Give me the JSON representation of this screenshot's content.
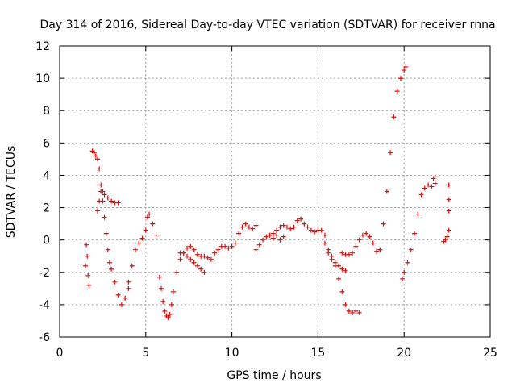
{
  "chart_data": {
    "type": "scatter",
    "title": "Day 314 of 2016, Sidereal Day-to-day VTEC variation (SDTVAR) for receiver rnna",
    "xlabel": "GPS time / hours",
    "ylabel": "SDTVAR / TECUs",
    "xlim": [
      0,
      25
    ],
    "ylim": [
      -6,
      12
    ],
    "xticks": [
      0,
      5,
      10,
      15,
      20,
      25
    ],
    "yticks": [
      -6,
      -4,
      -2,
      0,
      2,
      4,
      6,
      8,
      10,
      12
    ],
    "xtick_labels": [
      "0",
      "5",
      "10",
      "15",
      "20",
      "25"
    ],
    "ytick_labels": [
      "-6",
      "-4",
      "-2",
      "0",
      "2",
      "4",
      "6",
      "8",
      "10",
      "12"
    ],
    "grid": true,
    "marker": "plus",
    "color": "#ff0000",
    "series": [
      {
        "name": "seg1",
        "x": [
          1.5,
          1.55,
          1.6,
          1.65,
          1.7
        ],
        "y": [
          -1.6,
          -0.3,
          -1.0,
          -2.2,
          -2.8
        ]
      },
      {
        "name": "seg2",
        "x": [
          1.9,
          2.0,
          2.1,
          2.2,
          2.3,
          2.4,
          2.5,
          2.6,
          2.7,
          2.8,
          2.9,
          3.0,
          3.2,
          3.4,
          3.6,
          3.8,
          4.0
        ],
        "y": [
          5.5,
          5.4,
          5.2,
          5.0,
          4.4,
          3.4,
          2.4,
          1.4,
          0.4,
          -0.6,
          -1.4,
          -1.8,
          -2.6,
          -3.4,
          -4.0,
          -3.6,
          -3.0
        ]
      },
      {
        "name": "seg3",
        "x": [
          2.2,
          2.3,
          2.4,
          2.5,
          2.6,
          2.8,
          3.0,
          3.2,
          3.4
        ],
        "y": [
          1.8,
          2.4,
          3.0,
          3.0,
          2.8,
          2.6,
          2.4,
          2.3,
          2.3
        ]
      },
      {
        "name": "seg4",
        "x": [
          4.0,
          4.2,
          4.4,
          4.6,
          4.8,
          5.0,
          5.1,
          5.2,
          5.4,
          5.6
        ],
        "y": [
          -2.6,
          -1.6,
          -0.6,
          -0.2,
          0.1,
          0.6,
          1.4,
          1.6,
          1.0,
          0.3
        ]
      },
      {
        "name": "seg5",
        "x": [
          5.8,
          5.9,
          6.0,
          6.1,
          6.2,
          6.3,
          6.4,
          6.5,
          6.6,
          6.8,
          7.0,
          7.2,
          7.4,
          7.6,
          7.8,
          8.0,
          8.2,
          8.4,
          8.6,
          8.8,
          9.0,
          9.2,
          9.4,
          9.6,
          9.8,
          10.0,
          10.2,
          10.4,
          10.6,
          10.8,
          11.0,
          11.2,
          11.4
        ],
        "y": [
          -2.3,
          -3.0,
          -3.8,
          -4.4,
          -4.7,
          -4.8,
          -4.6,
          -4.0,
          -3.2,
          -2.0,
          -1.2,
          -0.8,
          -0.5,
          -0.4,
          -0.6,
          -0.9,
          -1.0,
          -1.0,
          -1.1,
          -1.2,
          -0.8,
          -0.6,
          -0.4,
          -0.4,
          -0.5,
          -0.4,
          -0.2,
          0.4,
          0.8,
          1.0,
          0.8,
          0.7,
          0.9
        ]
      },
      {
        "name": "seg6",
        "x": [
          7.0,
          7.2,
          7.4,
          7.6,
          7.8,
          8.0,
          8.2,
          8.4
        ],
        "y": [
          -0.8,
          -0.8,
          -1.0,
          -1.2,
          -1.4,
          -1.6,
          -1.8,
          -2.0
        ]
      },
      {
        "name": "seg7",
        "x": [
          11.4,
          11.6,
          11.8,
          12.0,
          12.2,
          12.4,
          12.6,
          12.8,
          13.0,
          13.2,
          13.4,
          13.6,
          13.8,
          14.0,
          14.2,
          14.4,
          14.6,
          14.8,
          15.0,
          15.2,
          15.4
        ],
        "y": [
          -0.6,
          -0.3,
          0.0,
          0.2,
          0.3,
          0.4,
          0.6,
          0.8,
          0.9,
          0.8,
          0.7,
          0.8,
          1.2,
          1.3,
          1.0,
          0.8,
          0.6,
          0.5,
          0.6,
          0.6,
          0.3
        ]
      },
      {
        "name": "seg8",
        "x": [
          12.2,
          12.4,
          12.6,
          12.8,
          13.0
        ],
        "y": [
          0.3,
          0.1,
          0.3,
          0.0,
          0.2
        ]
      },
      {
        "name": "seg9",
        "x": [
          15.4,
          15.6,
          15.8,
          16.0,
          16.2,
          16.4,
          16.6,
          16.8,
          17.0,
          17.2,
          17.4
        ],
        "y": [
          -0.2,
          -0.6,
          -1.0,
          -1.6,
          -2.4,
          -3.2,
          -4.0,
          -4.4,
          -4.5,
          -4.4,
          -4.5
        ]
      },
      {
        "name": "seg10",
        "x": [
          16.4,
          16.6,
          16.8,
          17.0,
          17.2,
          17.4,
          17.6,
          17.8,
          18.0,
          18.2,
          18.4,
          18.6
        ],
        "y": [
          -0.8,
          -0.9,
          -0.9,
          -0.8,
          -0.4,
          0.0,
          0.3,
          0.4,
          0.2,
          -0.2,
          -0.7,
          -0.6
        ]
      },
      {
        "name": "seg11",
        "x": [
          15.6,
          15.8,
          16.0,
          16.2,
          16.4,
          16.6
        ],
        "y": [
          -0.8,
          -1.2,
          -1.4,
          -1.6,
          -1.8,
          -1.9
        ]
      },
      {
        "name": "seg12",
        "x": [
          18.6,
          18.8,
          19.0,
          19.2,
          19.4,
          19.6,
          19.8,
          20.0,
          20.1
        ],
        "y": [
          -0.6,
          1.0,
          3.0,
          5.4,
          7.6,
          9.2,
          10.0,
          10.5,
          10.7
        ]
      },
      {
        "name": "seg13",
        "x": [
          19.9,
          20.0,
          20.2,
          20.4,
          20.6,
          20.8,
          21.0,
          21.2,
          21.4,
          21.6,
          21.8
        ],
        "y": [
          -2.4,
          -2.0,
          -1.4,
          -0.6,
          0.4,
          1.6,
          2.8,
          3.2,
          3.4,
          3.3,
          3.5
        ]
      },
      {
        "name": "seg14",
        "x": [
          21.7,
          21.8
        ],
        "y": [
          3.8,
          3.9
        ]
      },
      {
        "name": "seg15",
        "x": [
          22.3,
          22.4,
          22.5,
          22.6,
          22.6,
          22.6,
          22.6
        ],
        "y": [
          -0.1,
          0.0,
          0.2,
          0.6,
          1.8,
          2.5,
          3.4
        ]
      }
    ]
  }
}
